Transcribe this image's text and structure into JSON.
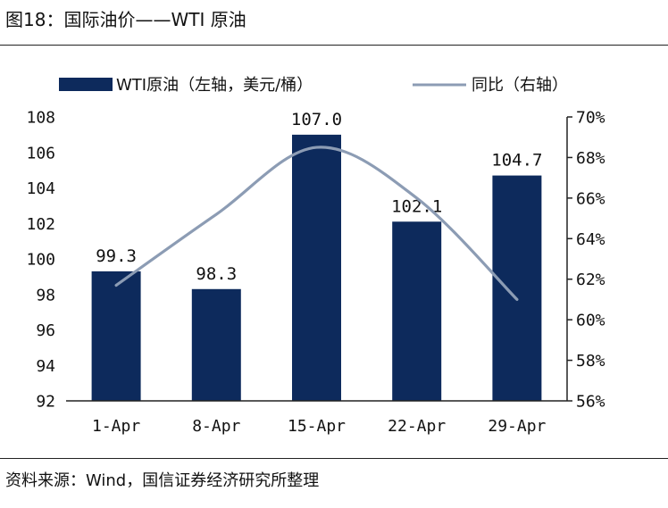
{
  "figure_title": "图18：国际油价——WTI 原油",
  "source_note": "资料来源：Wind，国信证券经济研究所整理",
  "chart_data": {
    "type": "bar+line",
    "categories": [
      "1-Apr",
      "8-Apr",
      "15-Apr",
      "22-Apr",
      "29-Apr"
    ],
    "series": [
      {
        "name": "WTI原油（左轴，美元/桶）",
        "type": "bar",
        "axis": "left",
        "color": "#0d2a5c",
        "values": [
          99.3,
          98.3,
          107.0,
          102.1,
          104.7
        ],
        "data_labels": [
          "99.3",
          "98.3",
          "107.0",
          "102.1",
          "104.7"
        ]
      },
      {
        "name": "同比（右轴）",
        "type": "line",
        "axis": "right",
        "color": "#8c9cb4",
        "values": [
          61.7,
          65.2,
          68.5,
          66.0,
          61.0
        ]
      }
    ],
    "y_left": {
      "min": 92,
      "max": 108,
      "ticks": [
        "92",
        "94",
        "96",
        "98",
        "100",
        "102",
        "104",
        "106",
        "108"
      ]
    },
    "y_right": {
      "min": 56,
      "max": 70,
      "ticks": [
        "56%",
        "58%",
        "60%",
        "62%",
        "64%",
        "66%",
        "68%",
        "70%"
      ]
    },
    "legend_position": "top",
    "grid": false
  }
}
